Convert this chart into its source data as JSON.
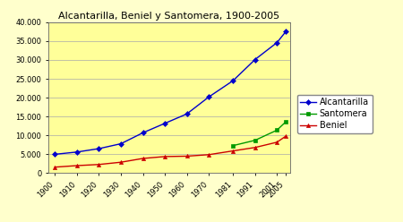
{
  "title": "Alcantarilla, Beniel y Santomera, 1900-2005",
  "years": [
    1900,
    1910,
    1920,
    1930,
    1940,
    1950,
    1960,
    1970,
    1981,
    1991,
    2001,
    2005
  ],
  "alcantarilla": [
    5000,
    5600,
    6500,
    7800,
    10700,
    13200,
    15700,
    20200,
    24500,
    30100,
    34600,
    37500
  ],
  "santomera": [
    null,
    null,
    null,
    null,
    null,
    null,
    null,
    null,
    7300,
    8700,
    11400,
    13600
  ],
  "beniel": [
    1600,
    2000,
    2300,
    2900,
    3900,
    4400,
    4500,
    4900,
    5900,
    6800,
    8200,
    9800
  ],
  "alcantarilla_color": "#0000CC",
  "santomera_color": "#009900",
  "beniel_color": "#CC0000",
  "bg_color": "#FFFFCC",
  "plot_bg_color": "#FFFF99",
  "grid_color": "#AAAAAA",
  "ylim": [
    0,
    40000
  ],
  "yticks": [
    0,
    5000,
    10000,
    15000,
    20000,
    25000,
    30000,
    35000,
    40000
  ],
  "xtick_labels": [
    "1900",
    "1910",
    "1920",
    "1930",
    "1940",
    "1950",
    "1960",
    "1970",
    "1981",
    "1991",
    "2001",
    "2005"
  ],
  "legend_labels": [
    "Alcantarilla",
    "Santomera",
    "Beniel"
  ],
  "title_fontsize": 8,
  "tick_fontsize": 6,
  "legend_fontsize": 7
}
